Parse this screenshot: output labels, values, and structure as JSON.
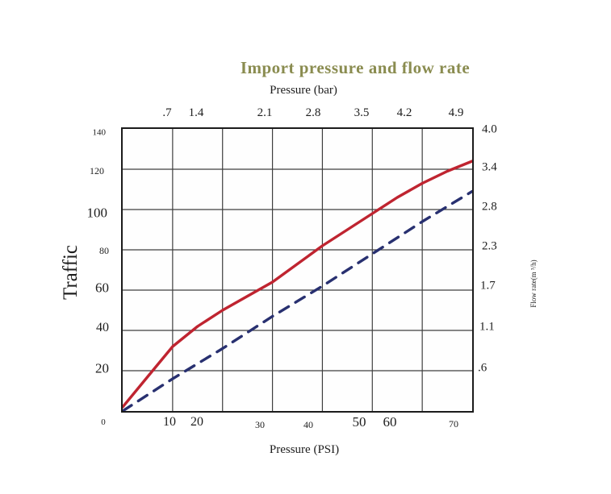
{
  "title": {
    "text": "Import pressure and flow rate",
    "color": "#8a8c50"
  },
  "axes": {
    "top": {
      "label": "Pressure (bar)",
      "ticks": [
        ".7",
        "1.4",
        "2.1",
        "2.8",
        "3.5",
        "4.2",
        "4.9"
      ]
    },
    "bottom": {
      "label": "Pressure (PSI)",
      "zero": "0",
      "ticks": [
        "10",
        "20",
        "30",
        "40",
        "50",
        "60",
        "70"
      ]
    },
    "left": {
      "label": "Traffic",
      "ticks": [
        "140",
        "120",
        "100",
        "80",
        "60",
        "40",
        "20"
      ]
    },
    "right": {
      "label": "Flow rate(m ³/h)",
      "ticks": [
        "4.0",
        "3.4",
        "2.8",
        "2.3",
        "1.7",
        "1.1",
        ".6"
      ]
    }
  },
  "chart_data": {
    "type": "line",
    "title": "Import pressure and flow rate",
    "grid": true,
    "x_axis": {
      "label": "Pressure (PSI)",
      "range": [
        0,
        70
      ],
      "ticks": [
        0,
        10,
        20,
        30,
        40,
        50,
        60,
        70
      ]
    },
    "x_axis_top": {
      "label": "Pressure (bar)",
      "ticks": [
        0.7,
        1.4,
        2.1,
        2.8,
        3.5,
        4.2,
        4.9
      ]
    },
    "y_axis_left": {
      "label": "Traffic",
      "range": [
        0,
        140
      ],
      "ticks": [
        0,
        20,
        40,
        60,
        80,
        100,
        120,
        140
      ]
    },
    "y_axis_right": {
      "label": "Flow rate(m ³/h)",
      "ticks": [
        0.6,
        1.1,
        1.7,
        2.3,
        2.8,
        3.4,
        4.0
      ]
    },
    "series": [
      {
        "name": "flow-curve-solid",
        "style": "solid",
        "color": "#bf2430",
        "x": [
          0,
          5,
          10,
          15,
          20,
          25,
          30,
          35,
          40,
          45,
          50,
          55,
          60,
          65,
          70
        ],
        "y": [
          2,
          17,
          32,
          42,
          50,
          57,
          64,
          73,
          82,
          90,
          98,
          106,
          113,
          119,
          124
        ]
      },
      {
        "name": "flow-curve-dashed",
        "style": "dashed",
        "color": "#283070",
        "x": [
          0,
          10,
          20,
          30,
          40,
          50,
          60,
          70
        ],
        "y": [
          0,
          16,
          31,
          47,
          62,
          78,
          94,
          109
        ]
      }
    ]
  }
}
